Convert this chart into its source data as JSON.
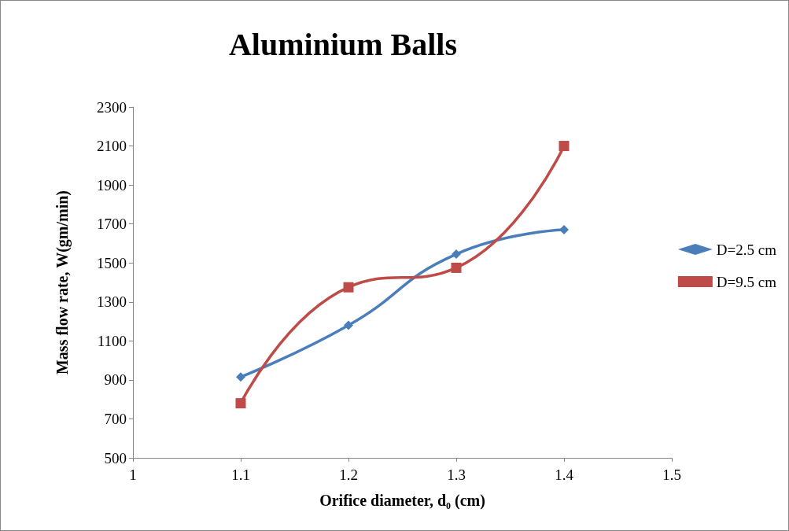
{
  "chart_data": {
    "type": "line",
    "title": "Aluminium Balls",
    "xlabel": "Orifice diameter, d₀ (cm)",
    "ylabel": "Mass flow rate, W(gm/min)",
    "x": [
      1.1,
      1.2,
      1.3,
      1.4
    ],
    "series": [
      {
        "name": "D=2.5 cm",
        "color": "#4a7ebb",
        "marker": "diamond",
        "values": [
          915,
          1180,
          1545,
          1670
        ]
      },
      {
        "name": "D=9.5 cm",
        "color": "#be4b48",
        "marker": "square",
        "values": [
          780,
          1375,
          1475,
          2100
        ]
      }
    ],
    "xlim": [
      1,
      1.5
    ],
    "xticks": [
      1,
      1.1,
      1.2,
      1.3,
      1.4,
      1.5
    ],
    "ylim": [
      500,
      2300
    ],
    "yticks": [
      500,
      700,
      900,
      1100,
      1300,
      1500,
      1700,
      1900,
      2100,
      2300
    ],
    "grid": false,
    "legend": "right",
    "line_style": "solid"
  }
}
